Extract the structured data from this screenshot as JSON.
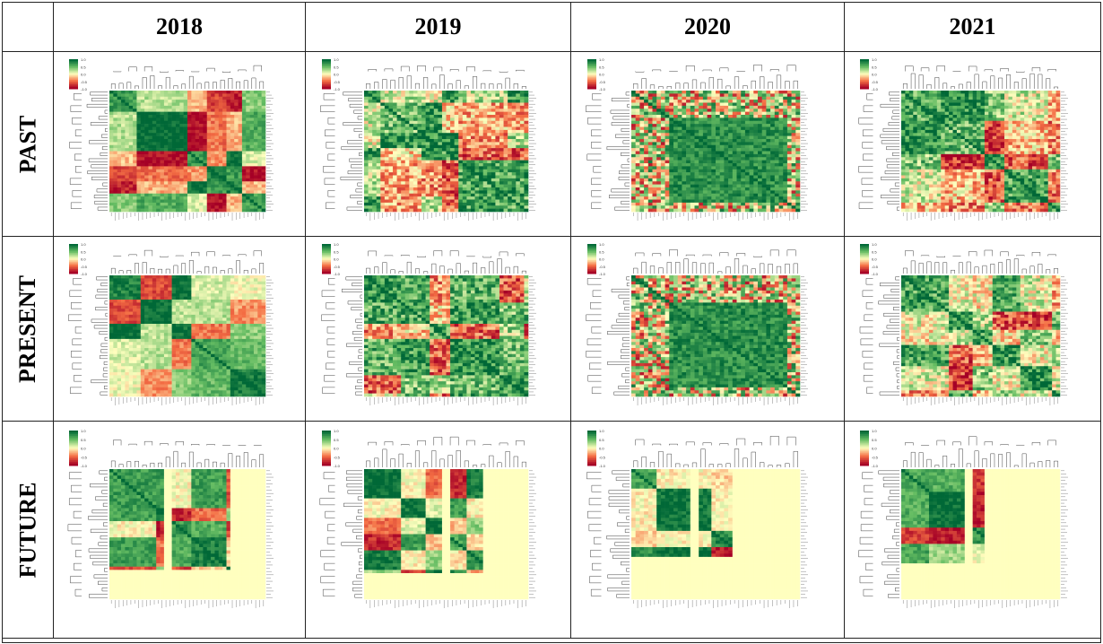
{
  "table": {
    "columns": [
      "2018",
      "2019",
      "2020",
      "2021"
    ],
    "rows": [
      "PAST",
      "PRESENT",
      "FUTURE"
    ]
  },
  "chart_data": [
    {
      "type": "heatmap",
      "year": "2018",
      "period": "PAST",
      "colorbar_ticks": [
        "1.0",
        "0.5",
        "0.0",
        "-0.5",
        "-1.0"
      ],
      "pattern": "blocks",
      "seed": 11,
      "vmin": -1,
      "vmax": 1,
      "cmap": "RdYlGn"
    },
    {
      "type": "heatmap",
      "year": "2019",
      "period": "PAST",
      "colorbar_ticks": [
        "1.0",
        "0.5",
        "0.0",
        "-0.5",
        "-1.0"
      ],
      "pattern": "mixed",
      "seed": 23,
      "vmin": -1,
      "vmax": 1,
      "cmap": "RdYlGn"
    },
    {
      "type": "heatmap",
      "year": "2020",
      "period": "PAST",
      "colorbar_ticks": [
        "1.0",
        "0.5",
        "0.0",
        "-0.5",
        "-1.0"
      ],
      "pattern": "bigblock",
      "seed": 37,
      "vmin": -1,
      "vmax": 1,
      "cmap": "RdYlGn"
    },
    {
      "type": "heatmap",
      "year": "2021",
      "period": "PAST",
      "colorbar_ticks": [
        "1.0",
        "0.5",
        "0.0",
        "-0.5",
        "-1.0"
      ],
      "pattern": "mixed",
      "seed": 41,
      "vmin": -1,
      "vmax": 1,
      "cmap": "RdYlGn"
    },
    {
      "type": "heatmap",
      "year": "2018",
      "period": "PRESENT",
      "colorbar_ticks": [
        "1.0",
        "0.5",
        "0.0",
        "-0.5",
        "-1.0"
      ],
      "pattern": "blocks",
      "seed": 53,
      "vmin": -1,
      "vmax": 1,
      "cmap": "RdYlGn"
    },
    {
      "type": "heatmap",
      "year": "2019",
      "period": "PRESENT",
      "colorbar_ticks": [
        "1.0",
        "0.5",
        "0.0",
        "-0.5",
        "-1.0"
      ],
      "pattern": "mixed",
      "seed": 67,
      "vmin": -1,
      "vmax": 1,
      "cmap": "RdYlGn"
    },
    {
      "type": "heatmap",
      "year": "2020",
      "period": "PRESENT",
      "colorbar_ticks": [
        "1.0",
        "0.5",
        "0.0",
        "-0.5",
        "-1.0"
      ],
      "pattern": "bigblock",
      "seed": 71,
      "vmin": -1,
      "vmax": 1,
      "cmap": "RdYlGn"
    },
    {
      "type": "heatmap",
      "year": "2021",
      "period": "PRESENT",
      "colorbar_ticks": [
        "1.0",
        "0.5",
        "0.0",
        "-0.5",
        "-1.0"
      ],
      "pattern": "mixed",
      "seed": 83,
      "vmin": -1,
      "vmax": 1,
      "cmap": "RdYlGn"
    },
    {
      "type": "heatmap",
      "year": "2018",
      "period": "FUTURE",
      "colorbar_ticks": [
        "1.0",
        "0.5",
        "0.0",
        "-0.5",
        "-1.0"
      ],
      "pattern": "blocks",
      "seed": 97,
      "vmin": -1,
      "vmax": 1,
      "cmap": "RdYlGn"
    },
    {
      "type": "heatmap",
      "year": "2019",
      "period": "FUTURE",
      "colorbar_ticks": [
        "1.0",
        "0.5",
        "0.0",
        "-0.5",
        "-1.0"
      ],
      "pattern": "blocks",
      "seed": 101,
      "vmin": -1,
      "vmax": 1,
      "cmap": "RdYlGn"
    },
    {
      "type": "heatmap",
      "year": "2020",
      "period": "FUTURE",
      "colorbar_ticks": [
        "1.0",
        "0.5",
        "0.0",
        "-0.5",
        "-1.0"
      ],
      "pattern": "blocks",
      "seed": 113,
      "vmin": -1,
      "vmax": 1,
      "cmap": "RdYlGn"
    },
    {
      "type": "heatmap",
      "year": "2021",
      "period": "FUTURE",
      "colorbar_ticks": [
        "1.0",
        "0.5",
        "0.0",
        "-0.5",
        "-1.0"
      ],
      "pattern": "blocks",
      "seed": 127,
      "vmin": -1,
      "vmax": 1,
      "cmap": "RdYlGn"
    }
  ]
}
